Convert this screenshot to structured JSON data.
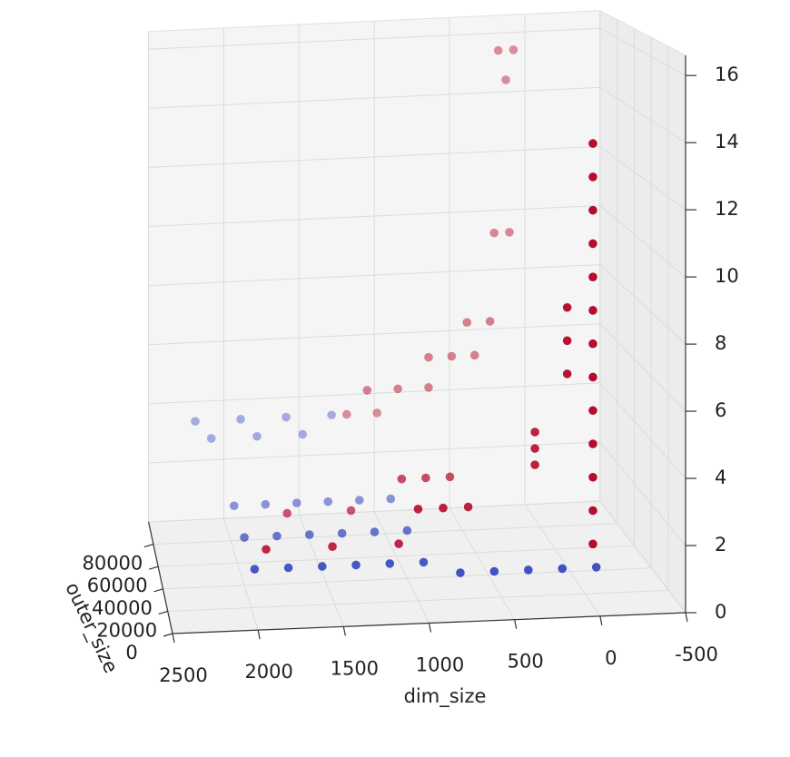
{
  "chart_data": {
    "type": "scatter3d",
    "xlabel": "dim_size",
    "ylabel": "outer_size",
    "xlim": [
      2500,
      -500
    ],
    "ylim": [
      0,
      100000
    ],
    "zlim": [
      0,
      16.6
    ],
    "xticks": [
      2500,
      2000,
      1500,
      1000,
      500,
      0,
      -500
    ],
    "yticks": [
      0,
      20000,
      40000,
      60000,
      80000
    ],
    "zticks": [
      0,
      2,
      4,
      6,
      8,
      10,
      12,
      14,
      16
    ],
    "grid": true,
    "series": [
      {
        "color": "#3b4cc0",
        "x": [
          2000,
          1800,
          1600,
          1400,
          1200,
          1000,
          2000,
          1800,
          1600,
          1400,
          1200,
          1000,
          2000,
          1800,
          1600,
          1400,
          1200,
          1000,
          800,
          600,
          400,
          200,
          0,
          2200,
          1900,
          1600,
          1300,
          2100,
          1800,
          1500
        ],
        "y": [
          10000,
          10000,
          10000,
          10000,
          10000,
          10000,
          40000,
          40000,
          40000,
          40000,
          40000,
          40000,
          70000,
          70000,
          70000,
          70000,
          70000,
          70000,
          5000,
          5000,
          5000,
          5000,
          5000,
          95000,
          95000,
          95000,
          95000,
          92000,
          92000,
          92000
        ],
        "z": [
          1.5,
          1.5,
          1.5,
          1.5,
          1.5,
          1.5,
          1.5,
          1.5,
          1.5,
          1.5,
          1.5,
          1.5,
          1.5,
          1.5,
          1.5,
          1.5,
          1.5,
          1.5,
          1.3,
          1.3,
          1.3,
          1.3,
          1.3,
          3.5,
          3.5,
          3.5,
          3.5,
          3.0,
          3.0,
          3.0
        ]
      },
      {
        "color": "#b40426",
        "x": [
          1900,
          1500,
          1100,
          1700,
          1300,
          1000,
          850,
          700,
          1000,
          850,
          700,
          1200,
          1000,
          1100,
          900,
          700,
          700,
          550,
          400,
          450,
          300,
          250,
          150,
          200,
          100,
          150,
          20,
          20,
          20,
          20,
          20,
          20,
          20,
          20,
          20,
          20,
          20,
          20,
          20,
          300,
          300,
          300,
          150,
          150,
          150
        ],
        "y": [
          25000,
          25000,
          25000,
          55000,
          55000,
          20000,
          20000,
          20000,
          50000,
          50000,
          50000,
          95000,
          95000,
          85000,
          85000,
          85000,
          85000,
          85000,
          85000,
          85000,
          85000,
          90000,
          90000,
          95000,
          95000,
          95000,
          5000,
          5000,
          5000,
          5000,
          5000,
          5000,
          5000,
          5000,
          5000,
          5000,
          5000,
          5000,
          5000,
          20000,
          20000,
          20000,
          10000,
          10000,
          10000
        ],
        "z": [
          1.6,
          1.6,
          1.6,
          1.7,
          1.7,
          2.8,
          2.8,
          2.8,
          2.8,
          2.8,
          2.8,
          3.5,
          3.5,
          4.6,
          4.6,
          4.6,
          5.6,
          5.6,
          5.6,
          6.7,
          6.7,
          9.5,
          9.5,
          15.5,
          15.5,
          14.5,
          2,
          3,
          4,
          5,
          6,
          7,
          8,
          9,
          10,
          11,
          12,
          13,
          14,
          4,
          4.5,
          5,
          7,
          8,
          9
        ]
      }
    ]
  }
}
